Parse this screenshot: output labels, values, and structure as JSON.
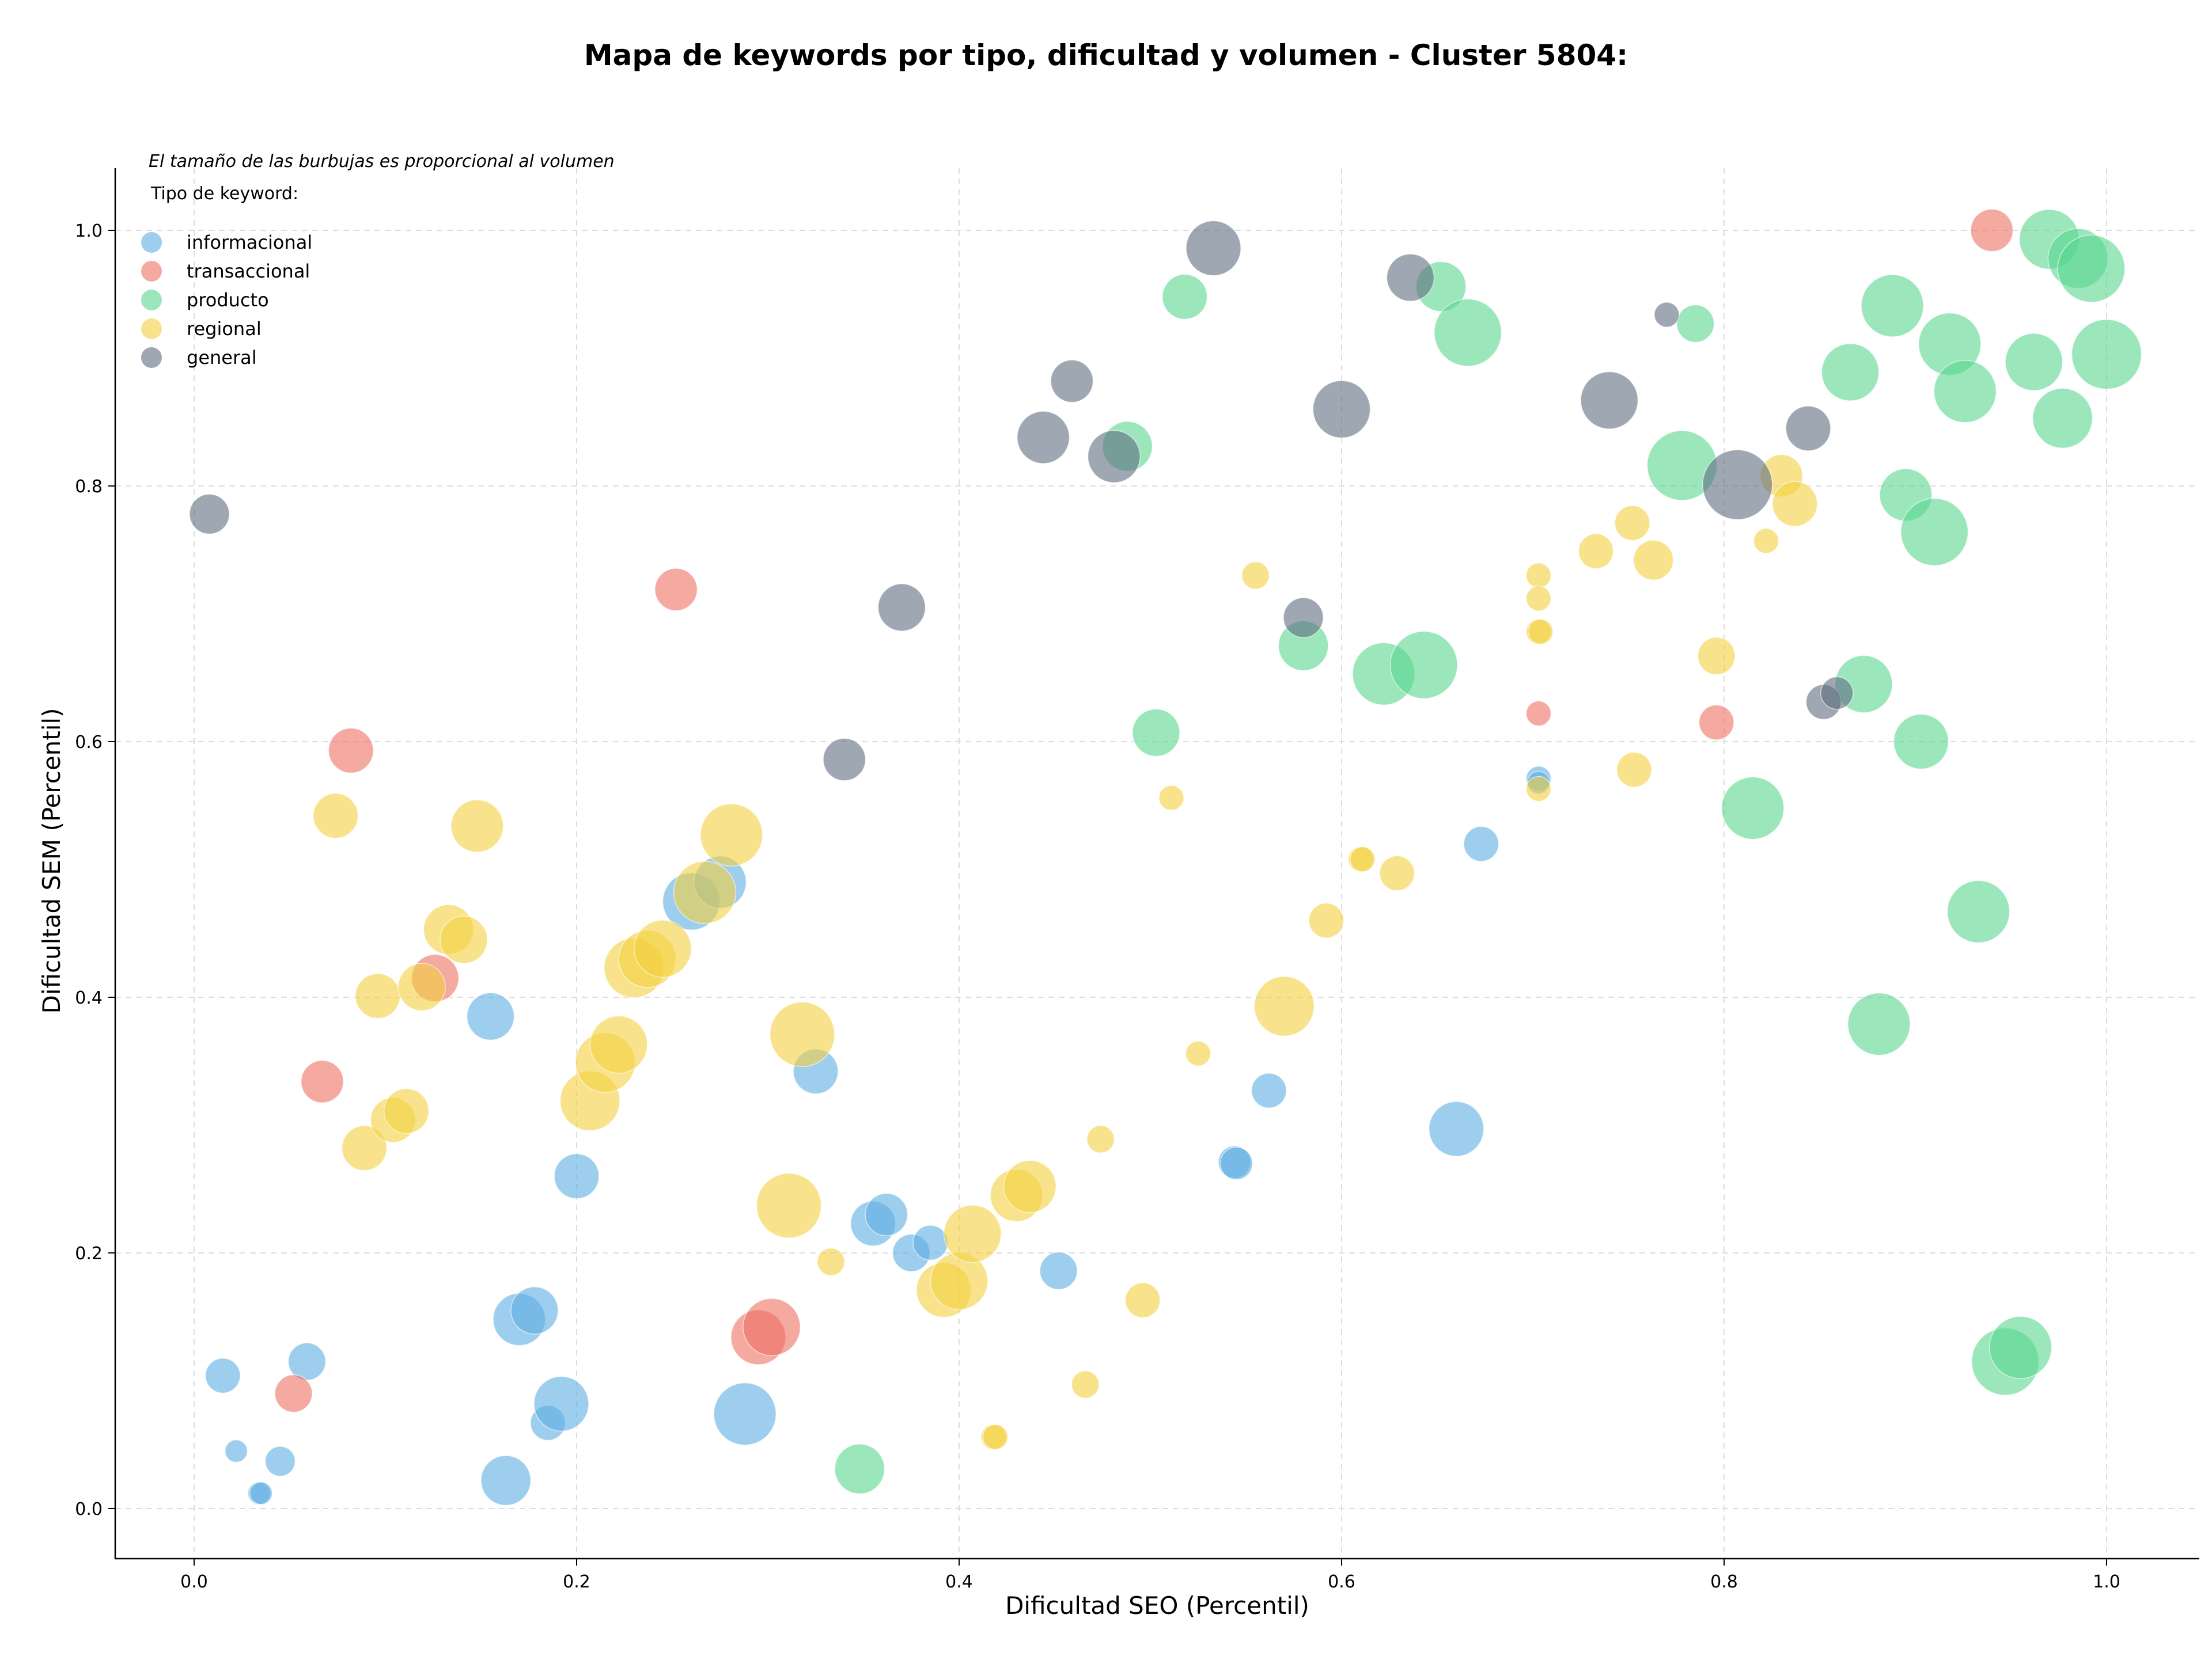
{
  "chart_data": {
    "type": "scatter",
    "title": "Mapa de keywords por tipo, dificultad y volumen - Cluster 5804:",
    "xlabel": "Dificultad SEO (Percentil)",
    "ylabel": "Dificultad SEM (Percentil)",
    "xlim": [
      -0.04,
      1.05
    ],
    "ylim": [
      -0.04,
      1.05
    ],
    "x_ticks": [
      "0.0",
      "0.2",
      "0.4",
      "0.6",
      "0.8",
      "1.0"
    ],
    "y_ticks": [
      "0.0",
      "0.2",
      "0.4",
      "0.6",
      "0.8",
      "1.0"
    ],
    "grid": true,
    "annotation": "El tamaño de las burbujas es proporcional al volumen",
    "legend": {
      "title": "Tipo de keyword:",
      "placement": "top-left",
      "entries": [
        "informacional",
        "transaccional",
        "producto",
        "regional",
        "general"
      ]
    },
    "size_note": "bubble size proportional to volume (relative, 0-100 scale)",
    "series": [
      {
        "name": "informacional",
        "color": "#5dade2",
        "points": [
          [
            0.015,
            0.104,
            28
          ],
          [
            0.022,
            0.045,
            18
          ],
          [
            0.034,
            0.012,
            18
          ],
          [
            0.035,
            0.012,
            18
          ],
          [
            0.045,
            0.037,
            24
          ],
          [
            0.059,
            0.115,
            30
          ],
          [
            0.155,
            0.385,
            38
          ],
          [
            0.163,
            0.022,
            40
          ],
          [
            0.17,
            0.148,
            42
          ],
          [
            0.178,
            0.155,
            38
          ],
          [
            0.185,
            0.067,
            28
          ],
          [
            0.192,
            0.082,
            44
          ],
          [
            0.2,
            0.26,
            36
          ],
          [
            0.288,
            0.074,
            50
          ],
          [
            0.26,
            0.475,
            46
          ],
          [
            0.275,
            0.49,
            42
          ],
          [
            0.325,
            0.342,
            36
          ],
          [
            0.355,
            0.223,
            36
          ],
          [
            0.362,
            0.23,
            34
          ],
          [
            0.375,
            0.2,
            30
          ],
          [
            0.385,
            0.208,
            28
          ],
          [
            0.452,
            0.186,
            30
          ],
          [
            0.544,
            0.271,
            26
          ],
          [
            0.545,
            0.27,
            26
          ],
          [
            0.562,
            0.327,
            28
          ],
          [
            0.66,
            0.297,
            44
          ],
          [
            0.673,
            0.52,
            28
          ],
          [
            0.703,
            0.571,
            20
          ],
          [
            0.703,
            0.568,
            18
          ]
        ]
      },
      {
        "name": "transaccional",
        "color": "#ec7063",
        "points": [
          [
            0.052,
            0.09,
            30
          ],
          [
            0.067,
            0.334,
            34
          ],
          [
            0.082,
            0.593,
            36
          ],
          [
            0.126,
            0.415,
            38
          ],
          [
            0.252,
            0.719,
            34
          ],
          [
            0.295,
            0.134,
            44
          ],
          [
            0.302,
            0.142,
            46
          ],
          [
            0.703,
            0.622,
            20
          ],
          [
            0.796,
            0.615,
            28
          ],
          [
            0.94,
            1.0,
            34
          ]
        ]
      },
      {
        "name": "producto",
        "color": "#58d68d",
        "points": [
          [
            0.348,
            0.031,
            40
          ],
          [
            0.488,
            0.831,
            40
          ],
          [
            0.503,
            0.607,
            38
          ],
          [
            0.518,
            0.948,
            36
          ],
          [
            0.58,
            0.675,
            40
          ],
          [
            0.622,
            0.653,
            50
          ],
          [
            0.643,
            0.66,
            54
          ],
          [
            0.652,
            0.956,
            40
          ],
          [
            0.666,
            0.92,
            54
          ],
          [
            0.778,
            0.816,
            56
          ],
          [
            0.785,
            0.927,
            30
          ],
          [
            0.815,
            0.548,
            50
          ],
          [
            0.866,
            0.889,
            46
          ],
          [
            0.873,
            0.645,
            46
          ],
          [
            0.881,
            0.379,
            50
          ],
          [
            0.888,
            0.941,
            50
          ],
          [
            0.895,
            0.793,
            42
          ],
          [
            0.903,
            0.6,
            44
          ],
          [
            0.91,
            0.764,
            54
          ],
          [
            0.918,
            0.911,
            50
          ],
          [
            0.926,
            0.874,
            50
          ],
          [
            0.933,
            0.467,
            50
          ],
          [
            0.947,
            0.115,
            54
          ],
          [
            0.955,
            0.126,
            50
          ],
          [
            0.962,
            0.897,
            46
          ],
          [
            0.97,
            0.993,
            48
          ],
          [
            0.977,
            0.853,
            48
          ],
          [
            0.985,
            0.978,
            48
          ],
          [
            0.992,
            0.97,
            54
          ],
          [
            1.0,
            0.903,
            56
          ]
        ]
      },
      {
        "name": "regional",
        "color": "#f4d03f",
        "points": [
          [
            0.074,
            0.542,
            36
          ],
          [
            0.089,
            0.282,
            36
          ],
          [
            0.096,
            0.401,
            36
          ],
          [
            0.104,
            0.304,
            36
          ],
          [
            0.111,
            0.311,
            36
          ],
          [
            0.119,
            0.408,
            38
          ],
          [
            0.133,
            0.453,
            40
          ],
          [
            0.141,
            0.445,
            38
          ],
          [
            0.148,
            0.534,
            42
          ],
          [
            0.207,
            0.319,
            48
          ],
          [
            0.215,
            0.349,
            48
          ],
          [
            0.222,
            0.363,
            46
          ],
          [
            0.23,
            0.423,
            48
          ],
          [
            0.237,
            0.43,
            46
          ],
          [
            0.245,
            0.438,
            46
          ],
          [
            0.267,
            0.482,
            50
          ],
          [
            0.281,
            0.527,
            50
          ],
          [
            0.311,
            0.237,
            52
          ],
          [
            0.318,
            0.371,
            52
          ],
          [
            0.333,
            0.193,
            22
          ],
          [
            0.392,
            0.171,
            44
          ],
          [
            0.4,
            0.178,
            46
          ],
          [
            0.407,
            0.215,
            46
          ],
          [
            0.418,
            0.056,
            20
          ],
          [
            0.419,
            0.056,
            20
          ],
          [
            0.43,
            0.245,
            42
          ],
          [
            0.437,
            0.252,
            42
          ],
          [
            0.466,
            0.097,
            22
          ],
          [
            0.474,
            0.289,
            22
          ],
          [
            0.496,
            0.163,
            28
          ],
          [
            0.511,
            0.556,
            20
          ],
          [
            0.525,
            0.356,
            20
          ],
          [
            0.555,
            0.73,
            22
          ],
          [
            0.57,
            0.393,
            48
          ],
          [
            0.592,
            0.46,
            28
          ],
          [
            0.61,
            0.508,
            20
          ],
          [
            0.611,
            0.508,
            20
          ],
          [
            0.629,
            0.497,
            28
          ],
          [
            0.703,
            0.73,
            20
          ],
          [
            0.703,
            0.712,
            20
          ],
          [
            0.703,
            0.686,
            20
          ],
          [
            0.704,
            0.686,
            20
          ],
          [
            0.703,
            0.563,
            20
          ],
          [
            0.733,
            0.749,
            28
          ],
          [
            0.752,
            0.771,
            28
          ],
          [
            0.753,
            0.578,
            28
          ],
          [
            0.763,
            0.742,
            32
          ],
          [
            0.796,
            0.667,
            30
          ],
          [
            0.822,
            0.757,
            20
          ],
          [
            0.83,
            0.808,
            34
          ],
          [
            0.837,
            0.786,
            36
          ]
        ]
      },
      {
        "name": "general",
        "color": "#5d6d7e",
        "points": [
          [
            0.008,
            0.778,
            32
          ],
          [
            0.34,
            0.586,
            34
          ],
          [
            0.37,
            0.705,
            38
          ],
          [
            0.444,
            0.838,
            42
          ],
          [
            0.459,
            0.882,
            34
          ],
          [
            0.481,
            0.823,
            42
          ],
          [
            0.533,
            0.986,
            44
          ],
          [
            0.58,
            0.697,
            32
          ],
          [
            0.6,
            0.86,
            46
          ],
          [
            0.636,
            0.963,
            38
          ],
          [
            0.74,
            0.867,
            46
          ],
          [
            0.77,
            0.934,
            20
          ],
          [
            0.807,
            0.801,
            56
          ],
          [
            0.844,
            0.845,
            36
          ],
          [
            0.852,
            0.631,
            28
          ],
          [
            0.859,
            0.638,
            26
          ]
        ]
      }
    ]
  }
}
